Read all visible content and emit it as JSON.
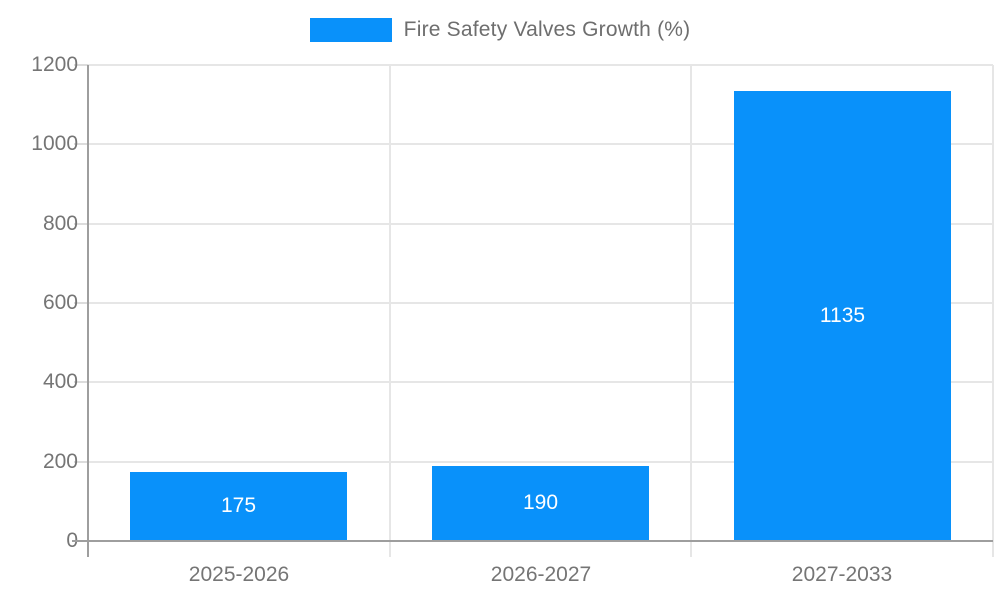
{
  "chart_data": {
    "type": "bar",
    "title": "",
    "legend": {
      "position": "top",
      "entries": [
        {
          "label": "Fire Safety Valves Growth (%)",
          "color": "#0991fa"
        }
      ]
    },
    "categories": [
      "2025-2026",
      "2026-2027",
      "2027-2033"
    ],
    "series": [
      {
        "name": "Fire Safety Valves Growth (%)",
        "values": [
          175,
          190,
          1135
        ],
        "color": "#0991fa"
      }
    ],
    "bar_value_labels": [
      "175",
      "190",
      "1135"
    ],
    "xlabel": "",
    "ylabel": "",
    "ylim": [
      0,
      1200
    ],
    "ytick_step": 200,
    "yticks": [
      0,
      200,
      400,
      600,
      800,
      1000,
      1200
    ],
    "grid": true,
    "colors": {
      "bar": "#0991fa",
      "axis": "#9e9e9e",
      "gridline": "#e6e6e6",
      "tick_text": "#757575",
      "legend_text": "#6e6e6e",
      "value_label_text": "#ffffff",
      "background": "#ffffff"
    }
  }
}
